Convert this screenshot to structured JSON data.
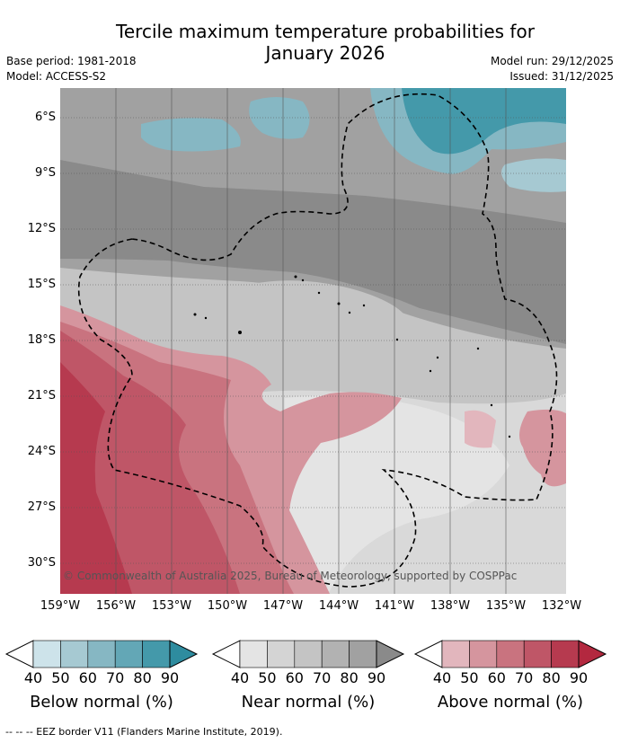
{
  "title_line1": "Tercile maximum temperature probabilities for",
  "title_line2": "January 2026",
  "base_period": "Base period: 1981-2018",
  "model": "Model: ACCESS-S2",
  "model_run": "Model run: 29/12/2025",
  "issued": "Issued: 31/12/2025",
  "copyright": "© Commonwealth of Australia 2025, Bureau of Meteorology, supported by COSPPac",
  "lat_labels": [
    "6°S",
    "9°S",
    "12°S",
    "15°S",
    "18°S",
    "21°S",
    "24°S",
    "27°S",
    "30°S"
  ],
  "lon_labels": [
    "159°W",
    "156°W",
    "153°W",
    "150°W",
    "147°W",
    "144°W",
    "141°W",
    "138°W",
    "135°W",
    "132°W"
  ],
  "colorbars": [
    {
      "label": "Below normal (%)",
      "ticks": [
        "40",
        "50",
        "60",
        "70",
        "80",
        "90"
      ],
      "colors": [
        "#ffffff",
        "#cde3ea",
        "#a6c9d2",
        "#86b7c3",
        "#63a7b6",
        "#4499aa",
        "#2e8c9f"
      ]
    },
    {
      "label": "Near normal (%)",
      "ticks": [
        "40",
        "50",
        "60",
        "70",
        "80",
        "90"
      ],
      "colors": [
        "#ffffff",
        "#e4e4e4",
        "#d4d4d4",
        "#c4c4c4",
        "#b2b2b2",
        "#a1a1a1",
        "#8a8a8a"
      ]
    },
    {
      "label": "Above normal (%)",
      "ticks": [
        "40",
        "50",
        "60",
        "70",
        "80",
        "90"
      ],
      "colors": [
        "#ffffff",
        "#e2b6bd",
        "#d5959e",
        "#c9737f",
        "#bf5667",
        "#b63a4f",
        "#b3283f"
      ]
    }
  ],
  "footnote": "--  --  -- EEZ border V11 (Flanders Marine Institute, 2019)."
}
